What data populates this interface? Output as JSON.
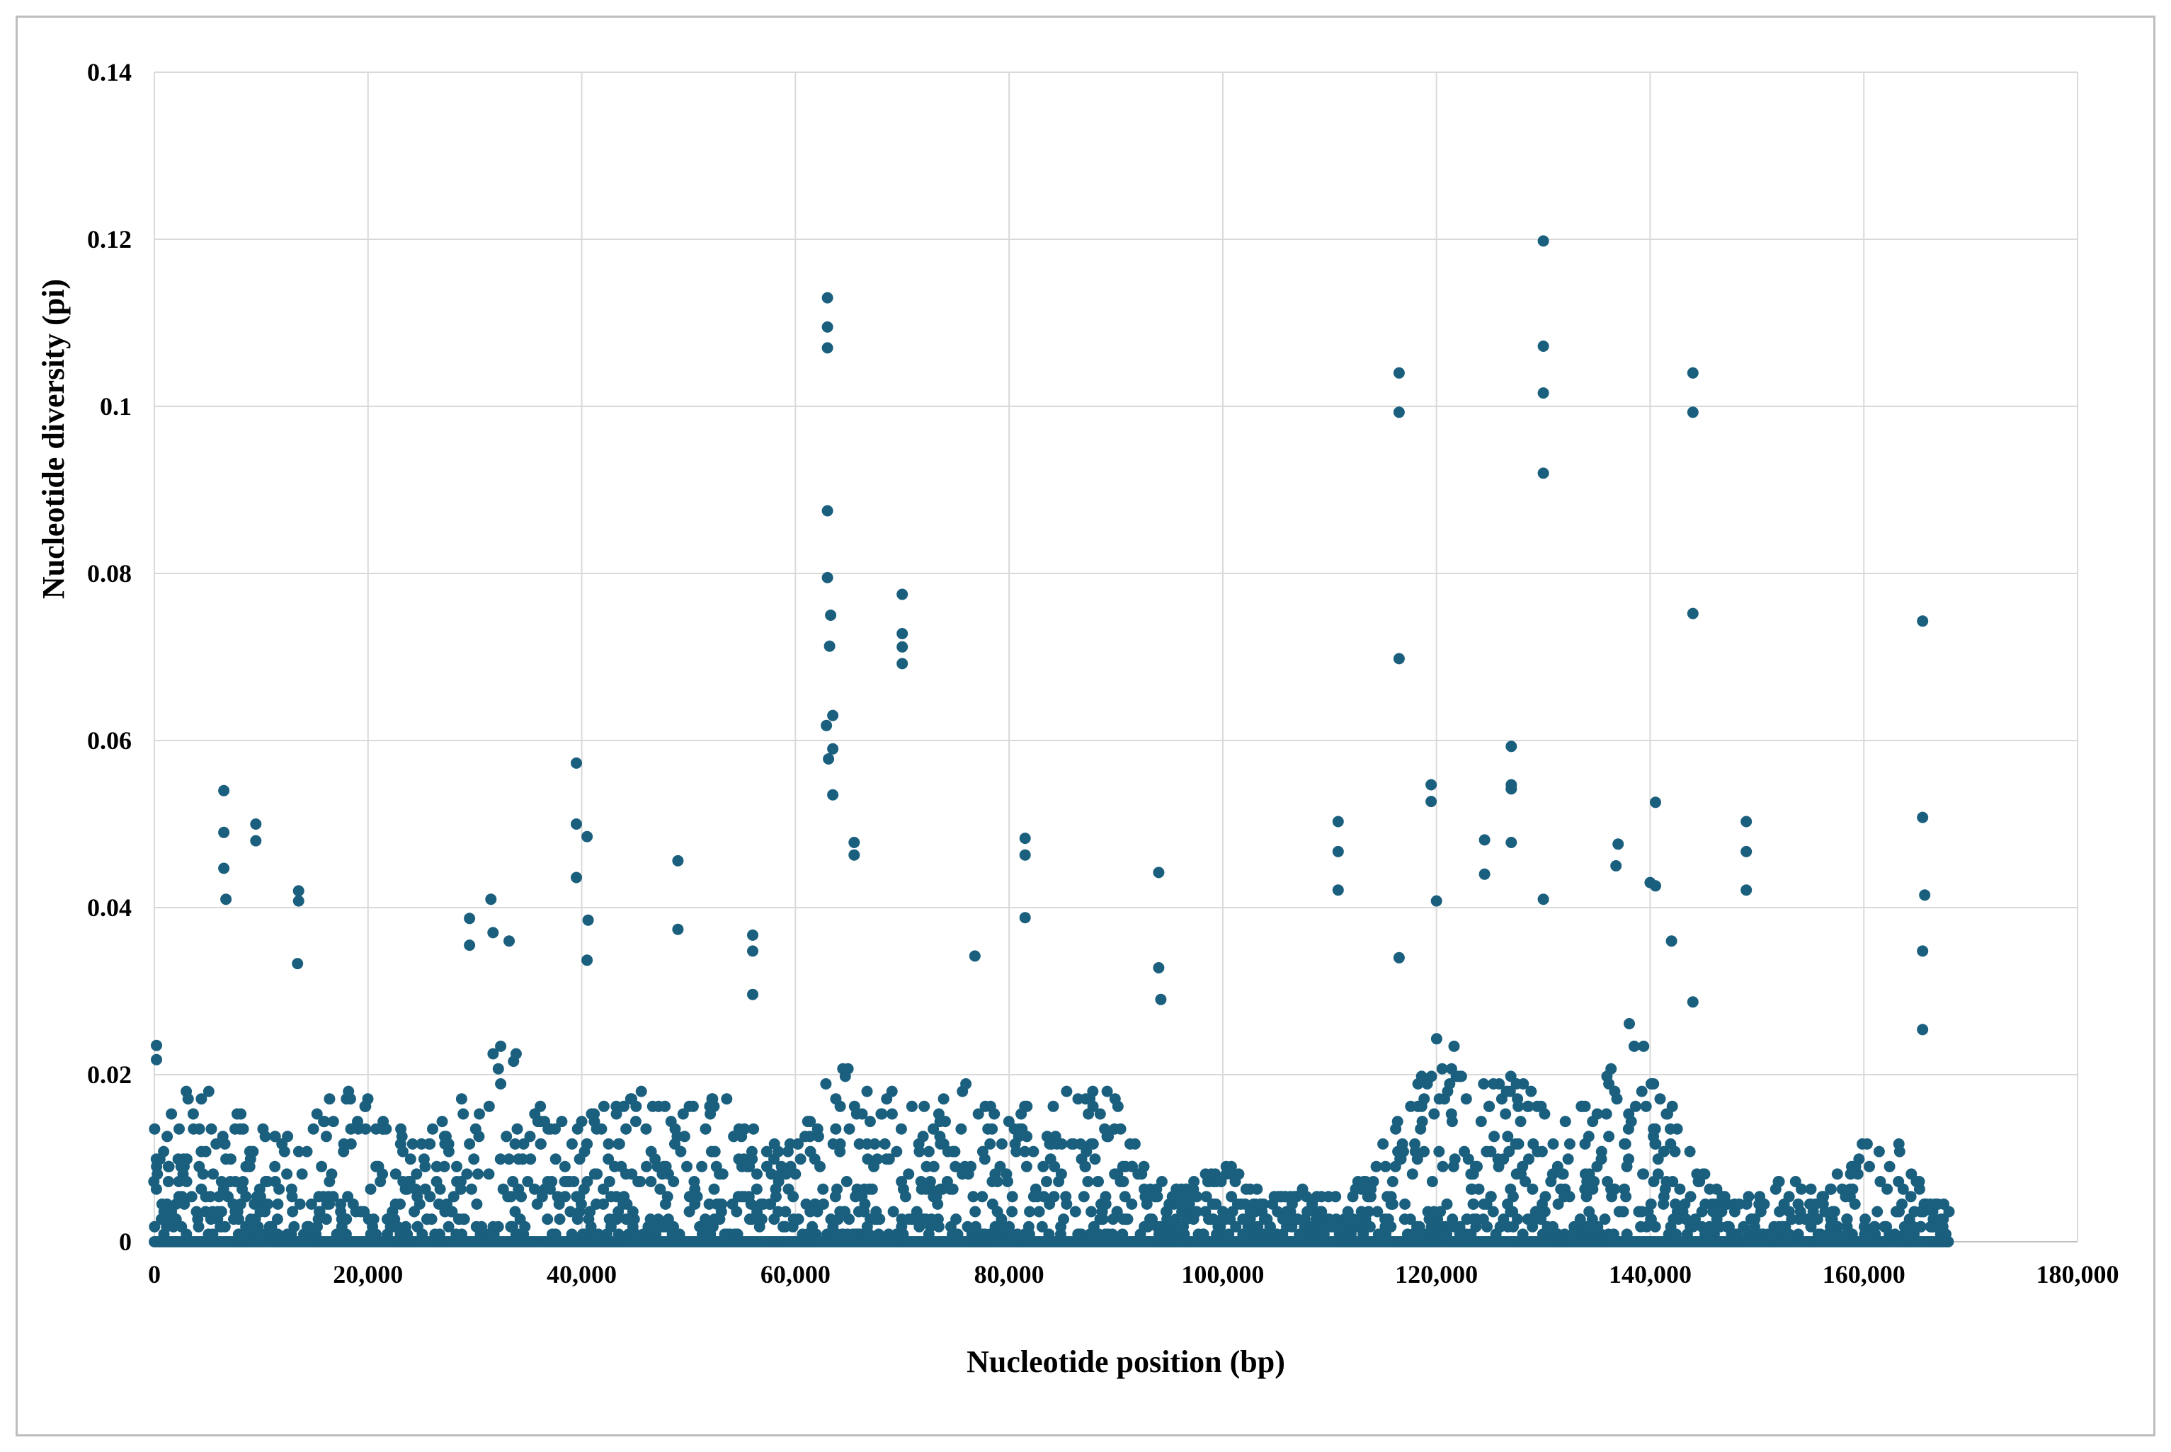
{
  "chart_data": {
    "type": "scatter",
    "title": "",
    "xlabel": "Nucleotide position (bp)",
    "ylabel": "Nucleotide diversity (pi)",
    "xlim": [
      0,
      180000
    ],
    "ylim": [
      0,
      0.14
    ],
    "x_ticks": [
      0,
      20000,
      40000,
      60000,
      80000,
      100000,
      120000,
      140000,
      160000,
      180000
    ],
    "x_tick_labels": [
      "0",
      "20,000",
      "40,000",
      "60,000",
      "80,000",
      "100,000",
      "120,000",
      "140,000",
      "160,000",
      "180,000"
    ],
    "y_ticks": [
      0,
      0.02,
      0.04,
      0.06,
      0.08,
      0.1,
      0.12,
      0.14
    ],
    "y_tick_labels": [
      "0",
      "0.02",
      "0.04",
      "0.06",
      "0.08",
      "0.1",
      "0.12",
      "0.14"
    ],
    "grid": true,
    "legend": "none",
    "marker_color": "#1b5f7e",
    "series": [
      {
        "name": "pi",
        "peaks": [
          [
            200,
            0.0235
          ],
          [
            200,
            0.0218
          ],
          [
            6500,
            0.054
          ],
          [
            6500,
            0.049
          ],
          [
            6500,
            0.0447
          ],
          [
            6700,
            0.041
          ],
          [
            9500,
            0.05
          ],
          [
            9500,
            0.048
          ],
          [
            13500,
            0.042
          ],
          [
            13500,
            0.0408
          ],
          [
            13400,
            0.0333
          ],
          [
            29500,
            0.0387
          ],
          [
            29500,
            0.0355
          ],
          [
            31500,
            0.041
          ],
          [
            31700,
            0.037
          ],
          [
            33200,
            0.036
          ],
          [
            39500,
            0.0573
          ],
          [
            39500,
            0.05
          ],
          [
            39500,
            0.0436
          ],
          [
            40500,
            0.0485
          ],
          [
            40600,
            0.0385
          ],
          [
            40500,
            0.0337
          ],
          [
            49000,
            0.0456
          ],
          [
            49000,
            0.0374
          ],
          [
            56000,
            0.0367
          ],
          [
            56000,
            0.0348
          ],
          [
            56000,
            0.0296
          ],
          [
            63000,
            0.113
          ],
          [
            63000,
            0.1095
          ],
          [
            63000,
            0.107
          ],
          [
            63000,
            0.0875
          ],
          [
            63000,
            0.0795
          ],
          [
            63300,
            0.075
          ],
          [
            63200,
            0.0713
          ],
          [
            63500,
            0.063
          ],
          [
            63500,
            0.059
          ],
          [
            62900,
            0.0618
          ],
          [
            63100,
            0.0578
          ],
          [
            63500,
            0.0535
          ],
          [
            70000,
            0.0775
          ],
          [
            70000,
            0.0728
          ],
          [
            70000,
            0.0712
          ],
          [
            70000,
            0.0692
          ],
          [
            65500,
            0.0478
          ],
          [
            65500,
            0.0463
          ],
          [
            81500,
            0.0483
          ],
          [
            81500,
            0.0463
          ],
          [
            81500,
            0.0388
          ],
          [
            76800,
            0.0342
          ],
          [
            94000,
            0.0442
          ],
          [
            94000,
            0.0328
          ],
          [
            94200,
            0.029
          ],
          [
            110800,
            0.0503
          ],
          [
            110800,
            0.0467
          ],
          [
            110800,
            0.0421
          ],
          [
            116500,
            0.104
          ],
          [
            116500,
            0.0993
          ],
          [
            116500,
            0.0698
          ],
          [
            116500,
            0.034
          ],
          [
            119500,
            0.0547
          ],
          [
            119500,
            0.0527
          ],
          [
            120000,
            0.0408
          ],
          [
            124500,
            0.0481
          ],
          [
            124500,
            0.044
          ],
          [
            127000,
            0.0593
          ],
          [
            127000,
            0.0547
          ],
          [
            127000,
            0.0542
          ],
          [
            127000,
            0.0478
          ],
          [
            130000,
            0.1198
          ],
          [
            130000,
            0.1072
          ],
          [
            130000,
            0.1016
          ],
          [
            130000,
            0.092
          ],
          [
            130000,
            0.041
          ],
          [
            140500,
            0.0526
          ],
          [
            140000,
            0.043
          ],
          [
            140500,
            0.0426
          ],
          [
            137000,
            0.0476
          ],
          [
            136800,
            0.045
          ],
          [
            142000,
            0.036
          ],
          [
            144000,
            0.104
          ],
          [
            144000,
            0.0993
          ],
          [
            144000,
            0.0752
          ],
          [
            144000,
            0.0287
          ],
          [
            149000,
            0.0503
          ],
          [
            149000,
            0.0467
          ],
          [
            149000,
            0.0421
          ],
          [
            165500,
            0.0743
          ],
          [
            165500,
            0.0508
          ],
          [
            165700,
            0.0415
          ],
          [
            165500,
            0.0348
          ],
          [
            165500,
            0.0254
          ]
        ],
        "background_density_note": "Dense band of points between 0 and ~0.02 across 0-168,000 bp (generated procedurally for rendering)"
      }
    ]
  }
}
